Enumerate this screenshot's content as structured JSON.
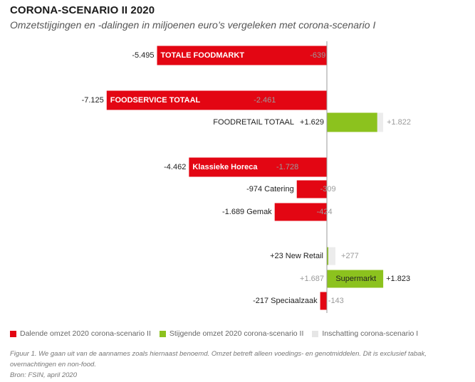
{
  "title": "CORONA-SCENARIO II 2020",
  "subtitle": "Omzetstijgingen en -dalingen in miljoenen euro’s vergeleken met corona-scenario I",
  "colors": {
    "decrease": "#e30613",
    "increase": "#8cc21e",
    "estimate": "#ececec",
    "axis": "#999999",
    "muted_text": "#9b9b9b"
  },
  "legend": [
    {
      "label": "Dalende omzet 2020 corona-scenario II",
      "color": "#e30613"
    },
    {
      "label": "Stijgende omzet 2020 corona-scenario II",
      "color": "#8cc21e"
    },
    {
      "label": "Inschatting corona-scenario I",
      "color": "#ececec"
    }
  ],
  "footnote": {
    "line1": "Figuur 1. We gaan uit van de aannames zoals hiernaast benoemd. Omzet betreft alleen voedings- en genotmiddelen. Dit is exclusief tabak, overnachtingen en non-food.",
    "line2": "Bron: FSIN, april 2020"
  },
  "chart_data": {
    "type": "bar",
    "orientation": "horizontal",
    "xlim": [
      -7500,
      1900
    ],
    "series": [
      {
        "name": "corona-scenario II",
        "values": [
          -5495,
          -7125,
          1629,
          -4462,
          -974,
          -1689,
          23,
          1823,
          -217
        ]
      },
      {
        "name": "corona-scenario I",
        "values": [
          -639,
          -2461,
          1822,
          -1728,
          -309,
          -424,
          277,
          1687,
          -143
        ]
      }
    ],
    "categories": [
      {
        "name": "TOTALE FOODMARKT",
        "s2_label": "-5.495",
        "s1_label": "-639"
      },
      {
        "name": "FOODSERVICE TOTAAL",
        "s2_label": "-7.125",
        "s1_label": "-2.461"
      },
      {
        "name": "FOODRETAIL TOTAAL",
        "s2_label": "+1.629",
        "s1_label": "+1.822"
      },
      {
        "name": "Klassieke Horeca",
        "s2_label": "-4.462",
        "s1_label": "-1.728"
      },
      {
        "name": "Catering",
        "s2_label": "-974",
        "s1_label": "-309"
      },
      {
        "name": "Gemak",
        "s2_label": "-1.689",
        "s1_label": "-424"
      },
      {
        "name": "New Retail",
        "s2_label": "+23",
        "s1_label": "+277"
      },
      {
        "name": "Supermarkt",
        "s2_label": "+1.823",
        "s1_label": "+1.687"
      },
      {
        "name": "Speciaalzaak",
        "s2_label": "-217",
        "s1_label": "-143"
      }
    ]
  }
}
